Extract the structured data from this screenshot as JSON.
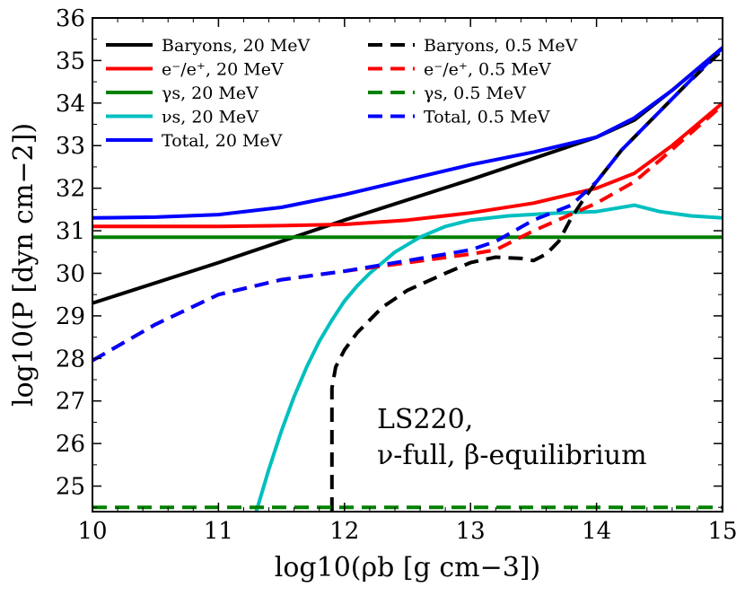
{
  "chart_data": {
    "type": "line",
    "title": "",
    "xlabel": "log10(ρb [g cm−3])",
    "ylabel": "log10(P [dyn cm−2])",
    "xlim": [
      10,
      15
    ],
    "ylim": [
      24.4,
      36
    ],
    "xticks": [
      10,
      11,
      12,
      13,
      14,
      15
    ],
    "yticks": [
      25,
      26,
      27,
      28,
      29,
      30,
      31,
      32,
      33,
      34,
      35,
      36
    ],
    "xtick_labels": [
      "10",
      "11",
      "12",
      "13",
      "14",
      "15"
    ],
    "ytick_labels": [
      "25",
      "26",
      "27",
      "28",
      "29",
      "30",
      "31",
      "32",
      "33",
      "34",
      "35",
      "36"
    ],
    "annotation": [
      "LS220,",
      "ν-full, β-equilibrium"
    ],
    "legend_position": "top-left",
    "series": [
      {
        "name": "Baryons, 20 MeV",
        "color": "#000000",
        "dash": "solid",
        "points": [
          [
            10,
            29.3
          ],
          [
            11,
            30.25
          ],
          [
            12,
            31.25
          ],
          [
            13,
            32.2
          ],
          [
            14,
            33.2
          ],
          [
            14.3,
            33.6
          ],
          [
            14.6,
            34.3
          ],
          [
            15,
            35.3
          ]
        ]
      },
      {
        "name": "e⁻/e⁺, 20 MeV",
        "color": "#ff0000",
        "dash": "solid",
        "points": [
          [
            10,
            31.1
          ],
          [
            11,
            31.1
          ],
          [
            11.5,
            31.12
          ],
          [
            12,
            31.15
          ],
          [
            12.5,
            31.25
          ],
          [
            13,
            31.42
          ],
          [
            13.5,
            31.65
          ],
          [
            14,
            32
          ],
          [
            14.3,
            32.35
          ],
          [
            14.6,
            33
          ],
          [
            15,
            34
          ]
        ]
      },
      {
        "name": "γs, 20 MeV",
        "color": "#008000",
        "dash": "solid",
        "points": [
          [
            10,
            30.85
          ],
          [
            15,
            30.85
          ]
        ]
      },
      {
        "name": "νs, 20 MeV",
        "color": "#00bfbf",
        "dash": "solid",
        "points": [
          [
            11.3,
            24.4
          ],
          [
            11.4,
            25.4
          ],
          [
            11.5,
            26.3
          ],
          [
            11.6,
            27.1
          ],
          [
            11.7,
            27.8
          ],
          [
            11.8,
            28.4
          ],
          [
            11.9,
            28.9
          ],
          [
            12,
            29.35
          ],
          [
            12.1,
            29.7
          ],
          [
            12.2,
            30
          ],
          [
            12.4,
            30.5
          ],
          [
            12.6,
            30.85
          ],
          [
            12.8,
            31.1
          ],
          [
            13,
            31.25
          ],
          [
            13.3,
            31.35
          ],
          [
            13.7,
            31.42
          ],
          [
            14,
            31.45
          ],
          [
            14.3,
            31.6
          ],
          [
            14.5,
            31.45
          ],
          [
            14.75,
            31.35
          ],
          [
            15,
            31.3
          ]
        ]
      },
      {
        "name": "Total, 20 MeV",
        "color": "#0000ff",
        "dash": "solid",
        "points": [
          [
            10,
            31.3
          ],
          [
            10.5,
            31.32
          ],
          [
            11,
            31.38
          ],
          [
            11.5,
            31.55
          ],
          [
            12,
            31.85
          ],
          [
            12.5,
            32.2
          ],
          [
            13,
            32.55
          ],
          [
            13.5,
            32.85
          ],
          [
            14,
            33.2
          ],
          [
            14.3,
            33.65
          ],
          [
            14.6,
            34.3
          ],
          [
            15,
            35.3
          ]
        ]
      },
      {
        "name": "Baryons, 0.5 MeV",
        "color": "#000000",
        "dash": "dashed",
        "points": [
          [
            11.9,
            24.4
          ],
          [
            11.9,
            27.3
          ],
          [
            11.93,
            27.8
          ],
          [
            12,
            28.2
          ],
          [
            12.1,
            28.6
          ],
          [
            12.3,
            29.2
          ],
          [
            12.5,
            29.6
          ],
          [
            12.8,
            30
          ],
          [
            13,
            30.25
          ],
          [
            13.2,
            30.38
          ],
          [
            13.4,
            30.35
          ],
          [
            13.5,
            30.3
          ],
          [
            13.6,
            30.45
          ],
          [
            13.7,
            30.75
          ],
          [
            13.8,
            31.3
          ],
          [
            13.9,
            31.75
          ],
          [
            14,
            32.15
          ],
          [
            14.2,
            32.9
          ],
          [
            14.4,
            33.5
          ],
          [
            14.7,
            34.4
          ],
          [
            15,
            35.25
          ]
        ]
      },
      {
        "name": "e⁻/e⁺, 0.5 MeV",
        "color": "#ff0000",
        "dash": "dashed",
        "points": [
          [
            10,
            27.95
          ],
          [
            10.5,
            28.8
          ],
          [
            11,
            29.5
          ],
          [
            11.5,
            29.85
          ],
          [
            12,
            30.05
          ],
          [
            12.5,
            30.25
          ],
          [
            13,
            30.45
          ],
          [
            13.2,
            30.55
          ],
          [
            13.5,
            31
          ],
          [
            14,
            31.65
          ],
          [
            14.3,
            32.15
          ],
          [
            14.5,
            32.65
          ],
          [
            15,
            33.95
          ]
        ]
      },
      {
        "name": "γs, 0.5 MeV",
        "color": "#008000",
        "dash": "dashed",
        "points": [
          [
            10,
            24.5
          ],
          [
            15,
            24.5
          ]
        ]
      },
      {
        "name": "Total, 0.5 MeV",
        "color": "#0000ff",
        "dash": "dashed",
        "points": [
          [
            10,
            27.95
          ],
          [
            10.5,
            28.8
          ],
          [
            11,
            29.5
          ],
          [
            11.5,
            29.85
          ],
          [
            12,
            30.05
          ],
          [
            12.5,
            30.3
          ],
          [
            13,
            30.55
          ],
          [
            13.2,
            30.75
          ],
          [
            13.5,
            31.25
          ],
          [
            13.8,
            31.6
          ],
          [
            14,
            32.15
          ],
          [
            14.2,
            32.9
          ],
          [
            14.4,
            33.5
          ],
          [
            14.7,
            34.4
          ],
          [
            15,
            35.3
          ]
        ]
      }
    ]
  }
}
